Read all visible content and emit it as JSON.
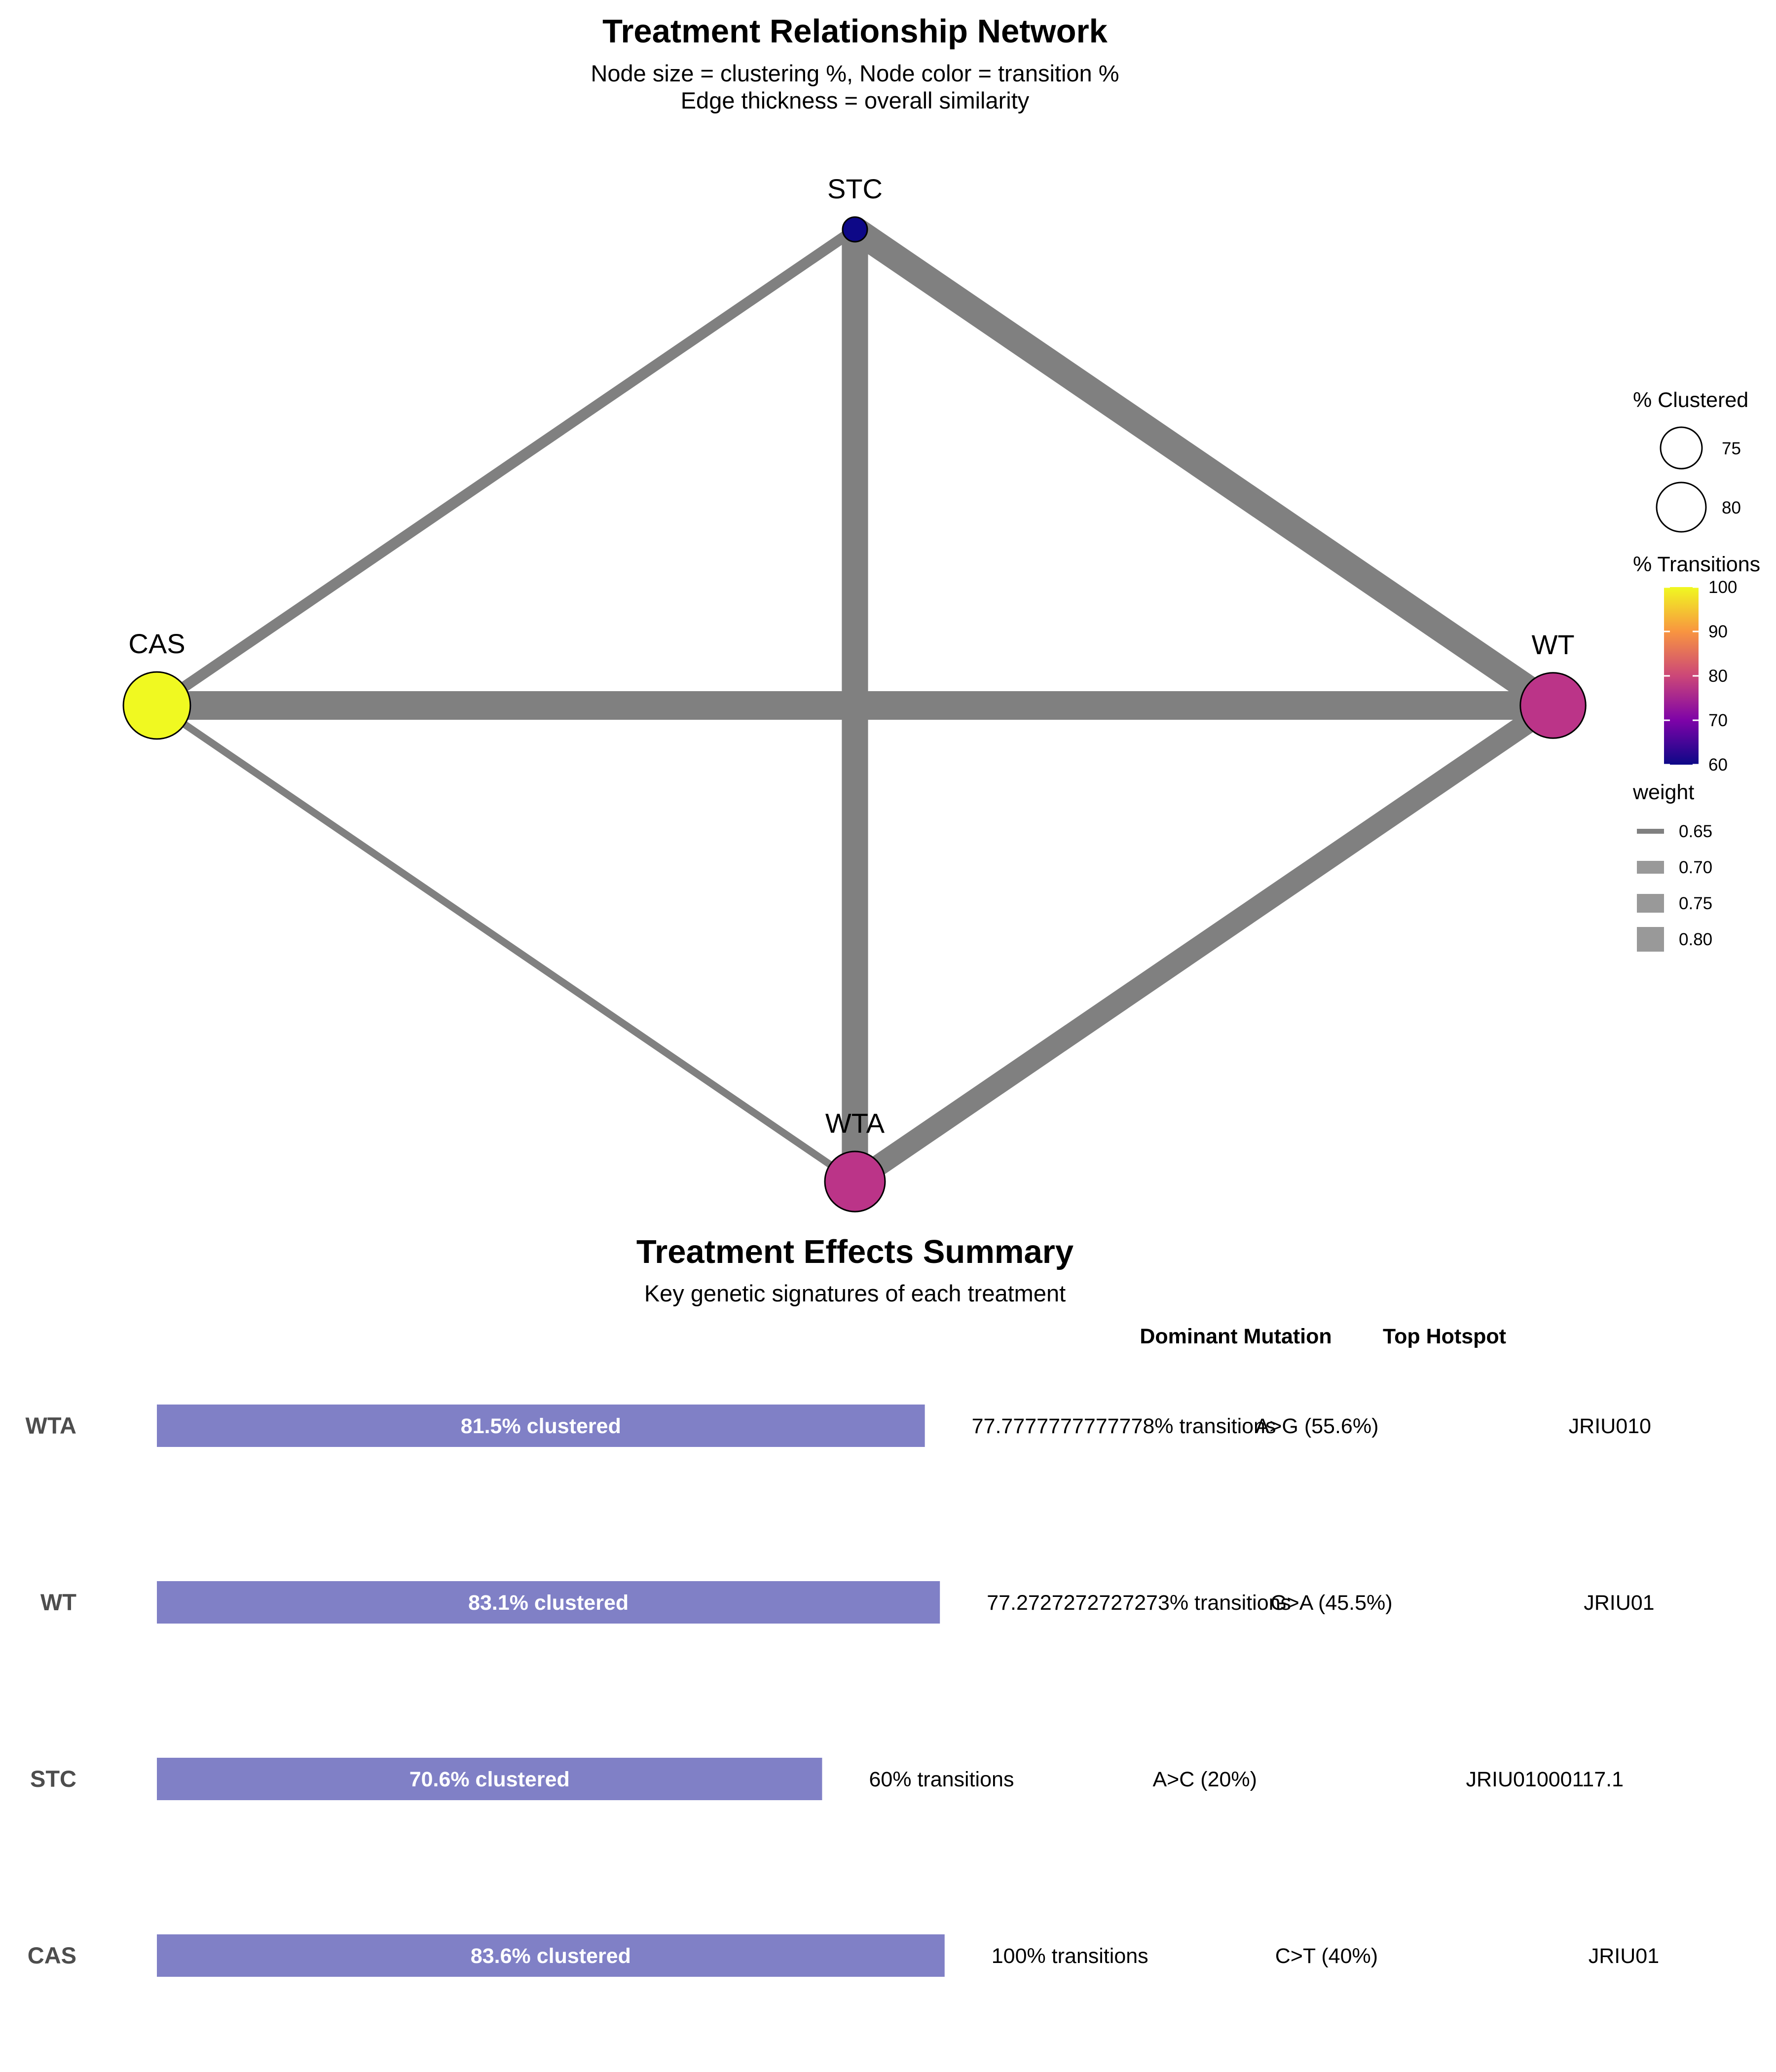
{
  "network": {
    "title": "Treatment Relationship Network",
    "subtitle_line1": "Node size = clustering %, Node color = transition %",
    "subtitle_line2": "Edge thickness = overall similarity"
  },
  "legend": {
    "size_title": "% Clustered",
    "size_items": [
      {
        "label": "75",
        "value": 75
      },
      {
        "label": "80",
        "value": 80
      }
    ],
    "color_title": "% Transitions",
    "color_ticks": [
      "100",
      "90",
      "80",
      "70",
      "60"
    ],
    "color_range": [
      60,
      100
    ],
    "weight_title": "weight",
    "weight_items": [
      {
        "label": "0.65",
        "value": 0.65
      },
      {
        "label": "0.70",
        "value": 0.7
      },
      {
        "label": "0.75",
        "value": 0.75
      },
      {
        "label": "0.80",
        "value": 0.8
      }
    ]
  },
  "summary": {
    "title": "Treatment Effects Summary",
    "subtitle": "Key genetic signatures of each treatment",
    "col_dominant": "Dominant Mutation",
    "col_hotspot": "Top Hotspot"
  },
  "chart_data": [
    {
      "type": "network",
      "nodes": [
        {
          "name": "STC",
          "clustered": 70.6,
          "transitions": 60,
          "color": "#0d0887"
        },
        {
          "name": "CAS",
          "clustered": 83.6,
          "transitions": 100,
          "color": "#f0f921"
        },
        {
          "name": "WT",
          "clustered": 83.1,
          "transitions": 77.27,
          "color": "#bb3488"
        },
        {
          "name": "WTA",
          "clustered": 81.5,
          "transitions": 77.78,
          "color": "#bb3488"
        }
      ],
      "edges": [
        {
          "from": "STC",
          "to": "CAS",
          "weight": 0.65
        },
        {
          "from": "STC",
          "to": "WTA",
          "weight": 0.78
        },
        {
          "from": "STC",
          "to": "WT",
          "weight": 0.78
        },
        {
          "from": "CAS",
          "to": "WT",
          "weight": 0.8
        },
        {
          "from": "CAS",
          "to": "WTA",
          "weight": 0.62
        },
        {
          "from": "WTA",
          "to": "WT",
          "weight": 0.74
        }
      ]
    },
    {
      "type": "bar",
      "categories": [
        "WTA",
        "WT",
        "STC",
        "CAS"
      ],
      "values": [
        81.5,
        83.1,
        70.6,
        83.6
      ],
      "bar_color": "#8080c6",
      "bar_labels": [
        "81.5% clustered",
        "83.1% clustered",
        "70.6% clustered",
        "83.6% clustered"
      ],
      "transitions_text": [
        "77.7777777777778% transitions",
        "77.2727272727273% transitions",
        "60% transitions",
        "100% transitions"
      ],
      "dominant_mutation": [
        "A>G (55.6%)",
        "G>A (45.5%)",
        "A>C (20%)",
        "C>T (40%)"
      ],
      "top_hotspot": [
        "JRIU010",
        "JRIU01",
        "JRIU01000117.1",
        "JRIU01"
      ]
    }
  ]
}
